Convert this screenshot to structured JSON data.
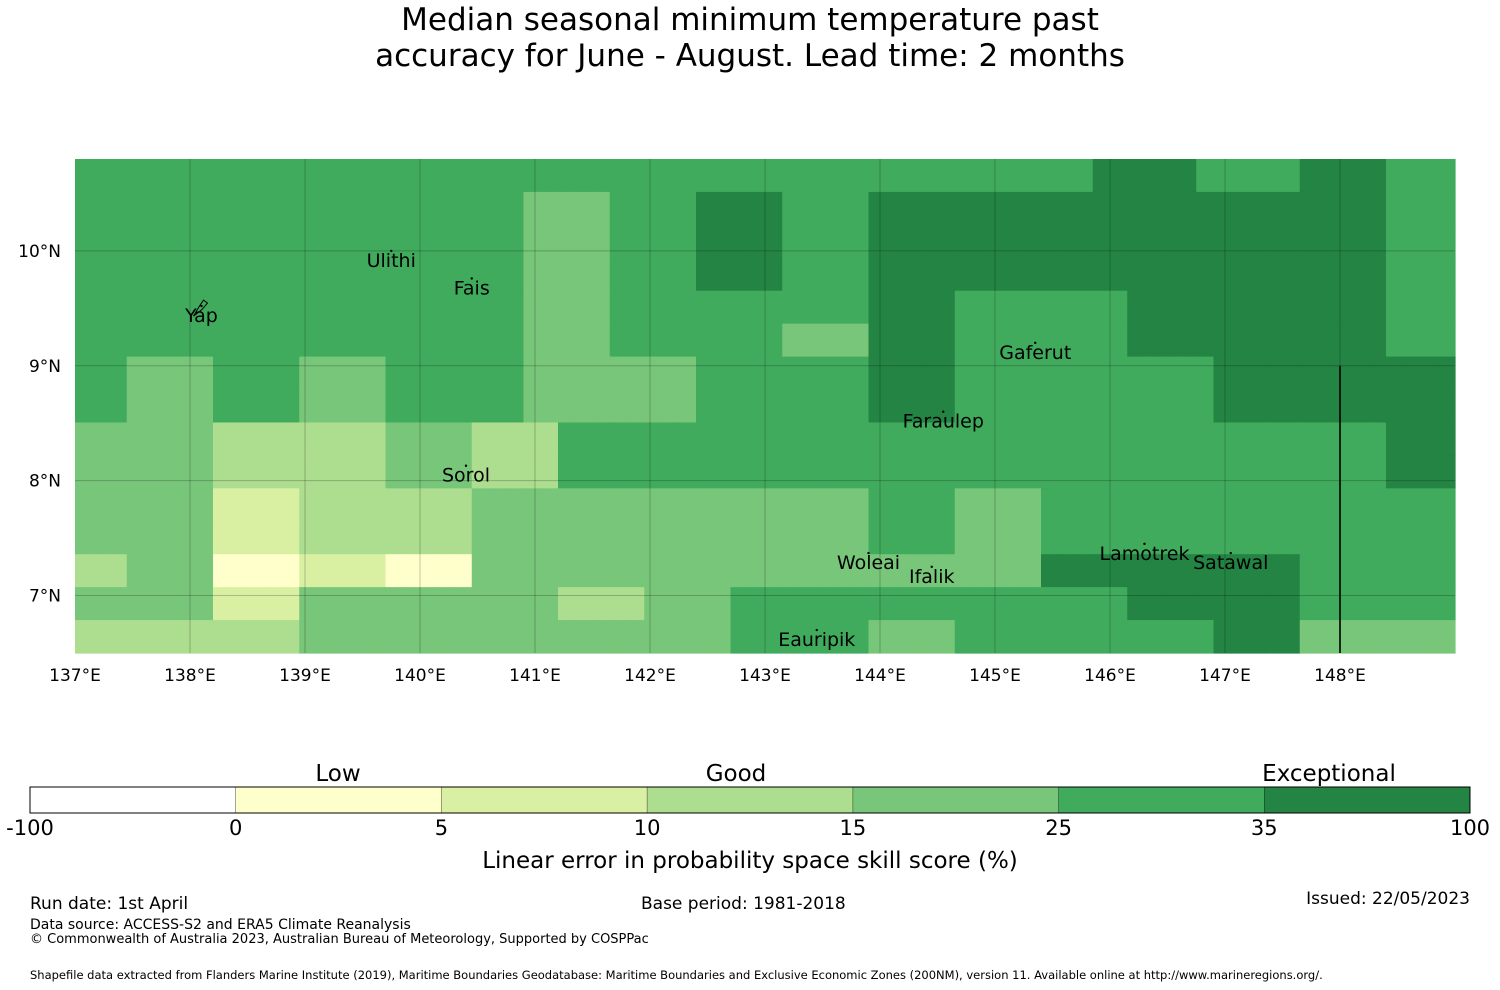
{
  "title": {
    "line1": "Median seasonal minimum temperature past",
    "line2": "accuracy for June - August. Lead time: 2 months"
  },
  "map": {
    "lon_range": [
      137,
      149
    ],
    "lat_range": [
      6.5,
      10.8
    ],
    "x_ticks": [
      "137°E",
      "138°E",
      "139°E",
      "140°E",
      "141°E",
      "142°E",
      "143°E",
      "144°E",
      "145°E",
      "146°E",
      "147°E",
      "148°E"
    ],
    "y_ticks": [
      "10°N",
      "9°N",
      "8°N",
      "7°N"
    ],
    "islands": [
      {
        "name": "Yap",
        "lon": 138.1,
        "lat": 9.52
      },
      {
        "name": "Ulithi",
        "lon": 139.75,
        "lat": 10.0
      },
      {
        "name": "Fais",
        "lon": 140.45,
        "lat": 9.76
      },
      {
        "name": "Gaferut",
        "lon": 145.35,
        "lat": 9.2
      },
      {
        "name": "Faraulep",
        "lon": 144.55,
        "lat": 8.6
      },
      {
        "name": "Sorol",
        "lon": 140.4,
        "lat": 8.13
      },
      {
        "name": "Woleai",
        "lon": 143.9,
        "lat": 7.37
      },
      {
        "name": "Ifalik",
        "lon": 144.45,
        "lat": 7.25
      },
      {
        "name": "Lamotrek",
        "lon": 146.3,
        "lat": 7.45
      },
      {
        "name": "Satawal",
        "lon": 147.05,
        "lat": 7.37
      },
      {
        "name": "Eauripik",
        "lon": 143.45,
        "lat": 6.7
      }
    ],
    "boundary_line": {
      "lon": 148.0,
      "lat_from": 6.5,
      "lat_to": 9.0
    },
    "class_colors": [
      "#ffffff",
      "#ffffcc",
      "#d9f0a3",
      "#addd8e",
      "#78c679",
      "#41ab5d",
      "#238443"
    ],
    "rows_north_to_south": [
      [
        5,
        5,
        5,
        5,
        5,
        5,
        5,
        5,
        5,
        5,
        5,
        5,
        5,
        5,
        5,
        5,
        5,
        5,
        5,
        5,
        5,
        5,
        5,
        5,
        5,
        5,
        5,
        5,
        5,
        5,
        5,
        5,
        5,
        5,
        5,
        5,
        5,
        5,
        5,
        5,
        5,
        5,
        5,
        5,
        5,
        5,
        5,
        5,
        5,
        5,
        5,
        5,
        5,
        5,
        5,
        5,
        5,
        5,
        5,
        6,
        6,
        6,
        6,
        6,
        6,
        5,
        5,
        5,
        5,
        5,
        5,
        6,
        6,
        6,
        6,
        6,
        5,
        5,
        5,
        5
      ],
      [
        5,
        5,
        5,
        5,
        5,
        5,
        5,
        5,
        5,
        5,
        5,
        5,
        5,
        5,
        5,
        5,
        5,
        5,
        5,
        5,
        5,
        5,
        5,
        5,
        5,
        5,
        4,
        4,
        4,
        4,
        4,
        5,
        5,
        5,
        5,
        5,
        6,
        6,
        6,
        6,
        6,
        5,
        5,
        5,
        5,
        5,
        6,
        6,
        6,
        6,
        6,
        6,
        6,
        6,
        6,
        6,
        6,
        6,
        6,
        6,
        6,
        6,
        6,
        6,
        6,
        6,
        6,
        6,
        6,
        6,
        6,
        6,
        6,
        6,
        6,
        6,
        5,
        5,
        5,
        5
      ],
      [
        5,
        5,
        5,
        5,
        5,
        5,
        5,
        5,
        5,
        5,
        5,
        5,
        5,
        5,
        5,
        5,
        5,
        5,
        5,
        5,
        5,
        5,
        5,
        5,
        5,
        5,
        4,
        4,
        4,
        4,
        4,
        5,
        5,
        5,
        5,
        5,
        6,
        6,
        6,
        6,
        6,
        5,
        5,
        5,
        5,
        5,
        6,
        6,
        6,
        6,
        6,
        6,
        6,
        6,
        6,
        6,
        6,
        6,
        6,
        6,
        6,
        6,
        6,
        6,
        6,
        6,
        6,
        6,
        6,
        6,
        6,
        6,
        6,
        6,
        6,
        6,
        5,
        5,
        5,
        5
      ],
      [
        5,
        5,
        5,
        5,
        5,
        5,
        5,
        5,
        5,
        5,
        5,
        5,
        5,
        5,
        5,
        5,
        5,
        5,
        5,
        5,
        5,
        5,
        5,
        5,
        5,
        5,
        4,
        4,
        4,
        4,
        4,
        5,
        5,
        5,
        5,
        5,
        6,
        6,
        6,
        6,
        6,
        5,
        5,
        5,
        5,
        5,
        6,
        6,
        6,
        6,
        6,
        6,
        6,
        6,
        6,
        6,
        6,
        6,
        6,
        6,
        6,
        6,
        6,
        6,
        6,
        6,
        6,
        6,
        6,
        6,
        6,
        6,
        6,
        6,
        6,
        6,
        5,
        5,
        5,
        5
      ],
      [
        5,
        5,
        5,
        5,
        5,
        5,
        5,
        5,
        5,
        5,
        5,
        5,
        5,
        5,
        5,
        5,
        5,
        5,
        5,
        5,
        5,
        5,
        5,
        5,
        5,
        5,
        4,
        4,
        4,
        4,
        4,
        5,
        5,
        5,
        5,
        5,
        5,
        5,
        5,
        5,
        5,
        5,
        5,
        5,
        5,
        5,
        6,
        6,
        6,
        6,
        6,
        5,
        5,
        5,
        5,
        5,
        5,
        5,
        5,
        5,
        5,
        6,
        6,
        6,
        6,
        6,
        6,
        6,
        6,
        6,
        6,
        6,
        6,
        6,
        6,
        6,
        5,
        5,
        5,
        5
      ],
      [
        5,
        5,
        5,
        5,
        5,
        5,
        5,
        5,
        5,
        5,
        5,
        5,
        5,
        5,
        5,
        5,
        5,
        5,
        5,
        5,
        5,
        5,
        5,
        5,
        5,
        5,
        4,
        4,
        4,
        4,
        4,
        5,
        5,
        5,
        5,
        5,
        5,
        5,
        5,
        5,
        5,
        4,
        4,
        4,
        4,
        4,
        6,
        6,
        6,
        6,
        6,
        5,
        5,
        5,
        5,
        5,
        5,
        5,
        5,
        5,
        5,
        6,
        6,
        6,
        6,
        6,
        6,
        6,
        6,
        6,
        6,
        6,
        6,
        6,
        6,
        6,
        5,
        5,
        5,
        5
      ],
      [
        5,
        5,
        5,
        4,
        4,
        4,
        4,
        4,
        5,
        5,
        5,
        5,
        5,
        4,
        4,
        4,
        4,
        4,
        5,
        5,
        5,
        5,
        5,
        5,
        5,
        5,
        4,
        4,
        4,
        4,
        4,
        4,
        4,
        4,
        4,
        4,
        5,
        5,
        5,
        5,
        5,
        5,
        5,
        5,
        5,
        5,
        6,
        6,
        6,
        6,
        6,
        5,
        5,
        5,
        5,
        5,
        5,
        5,
        5,
        5,
        5,
        5,
        5,
        5,
        5,
        5,
        6,
        6,
        6,
        6,
        6,
        6,
        6,
        6,
        6,
        6,
        6,
        6,
        6,
        6
      ],
      [
        5,
        5,
        5,
        4,
        4,
        4,
        4,
        4,
        5,
        5,
        5,
        5,
        5,
        4,
        4,
        4,
        4,
        4,
        5,
        5,
        5,
        5,
        5,
        5,
        5,
        5,
        4,
        4,
        4,
        4,
        4,
        4,
        4,
        4,
        4,
        4,
        5,
        5,
        5,
        5,
        5,
        5,
        5,
        5,
        5,
        5,
        6,
        6,
        6,
        6,
        6,
        5,
        5,
        5,
        5,
        5,
        5,
        5,
        5,
        5,
        5,
        5,
        5,
        5,
        5,
        5,
        6,
        6,
        6,
        6,
        6,
        6,
        6,
        6,
        6,
        6,
        6,
        6,
        6,
        6
      ],
      [
        4,
        4,
        4,
        4,
        4,
        4,
        4,
        4,
        3,
        3,
        3,
        3,
        3,
        3,
        3,
        3,
        3,
        3,
        4,
        4,
        4,
        4,
        4,
        3,
        3,
        3,
        3,
        3,
        5,
        5,
        5,
        5,
        5,
        5,
        5,
        5,
        5,
        5,
        5,
        5,
        5,
        5,
        5,
        5,
        5,
        5,
        5,
        5,
        5,
        5,
        5,
        5,
        5,
        5,
        5,
        5,
        5,
        5,
        5,
        5,
        5,
        5,
        5,
        5,
        5,
        5,
        5,
        5,
        5,
        5,
        5,
        5,
        5,
        5,
        5,
        5,
        6,
        6,
        6,
        6
      ],
      [
        4,
        4,
        4,
        4,
        4,
        4,
        4,
        4,
        3,
        3,
        3,
        3,
        3,
        3,
        3,
        3,
        3,
        3,
        4,
        4,
        4,
        4,
        4,
        3,
        3,
        3,
        3,
        3,
        5,
        5,
        5,
        5,
        5,
        5,
        5,
        5,
        5,
        5,
        5,
        5,
        5,
        5,
        5,
        5,
        5,
        5,
        5,
        5,
        5,
        5,
        5,
        5,
        5,
        5,
        5,
        5,
        5,
        5,
        5,
        5,
        5,
        5,
        5,
        5,
        5,
        5,
        5,
        5,
        5,
        5,
        5,
        5,
        5,
        5,
        5,
        5,
        6,
        6,
        6,
        6
      ],
      [
        4,
        4,
        4,
        4,
        4,
        4,
        4,
        4,
        2,
        2,
        2,
        2,
        2,
        3,
        3,
        3,
        3,
        3,
        3,
        3,
        3,
        3,
        3,
        4,
        4,
        4,
        4,
        4,
        4,
        4,
        4,
        4,
        4,
        4,
        4,
        4,
        4,
        4,
        4,
        4,
        4,
        4,
        4,
        4,
        4,
        4,
        5,
        5,
        5,
        5,
        5,
        4,
        4,
        4,
        4,
        4,
        5,
        5,
        5,
        5,
        5,
        5,
        5,
        5,
        5,
        5,
        5,
        5,
        5,
        5,
        5,
        5,
        5,
        5,
        5,
        5,
        5,
        5,
        5,
        5
      ],
      [
        4,
        4,
        4,
        4,
        4,
        4,
        4,
        4,
        2,
        2,
        2,
        2,
        2,
        3,
        3,
        3,
        3,
        3,
        3,
        3,
        3,
        3,
        3,
        4,
        4,
        4,
        4,
        4,
        4,
        4,
        4,
        4,
        4,
        4,
        4,
        4,
        4,
        4,
        4,
        4,
        4,
        4,
        4,
        4,
        4,
        4,
        5,
        5,
        5,
        5,
        5,
        4,
        4,
        4,
        4,
        4,
        5,
        5,
        5,
        5,
        5,
        5,
        5,
        5,
        5,
        5,
        5,
        5,
        5,
        5,
        5,
        5,
        5,
        5,
        5,
        5,
        5,
        5,
        5,
        5
      ],
      [
        3,
        3,
        3,
        4,
        4,
        4,
        4,
        4,
        1,
        1,
        1,
        1,
        1,
        2,
        2,
        2,
        2,
        2,
        1,
        1,
        1,
        1,
        1,
        4,
        4,
        4,
        4,
        4,
        4,
        4,
        4,
        4,
        4,
        4,
        4,
        4,
        4,
        4,
        4,
        4,
        4,
        4,
        4,
        4,
        4,
        4,
        4,
        4,
        4,
        4,
        4,
        4,
        4,
        4,
        4,
        4,
        6,
        6,
        6,
        6,
        6,
        6,
        6,
        6,
        6,
        6,
        6,
        6,
        6,
        6,
        6,
        5,
        5,
        5,
        5,
        5,
        5,
        5,
        5,
        5
      ],
      [
        4,
        4,
        4,
        4,
        4,
        4,
        4,
        4,
        2,
        2,
        2,
        2,
        2,
        4,
        4,
        4,
        4,
        4,
        4,
        4,
        4,
        4,
        4,
        4,
        4,
        4,
        4,
        4,
        3,
        3,
        3,
        3,
        3,
        4,
        4,
        4,
        4,
        4,
        5,
        5,
        5,
        5,
        5,
        5,
        5,
        5,
        5,
        5,
        5,
        5,
        5,
        5,
        5,
        5,
        5,
        5,
        5,
        5,
        5,
        5,
        5,
        6,
        6,
        6,
        6,
        6,
        6,
        6,
        6,
        6,
        6,
        5,
        5,
        5,
        5,
        5,
        5,
        5,
        5,
        5
      ],
      [
        3,
        3,
        3,
        3,
        3,
        3,
        3,
        3,
        3,
        3,
        3,
        3,
        3,
        4,
        4,
        4,
        4,
        4,
        4,
        4,
        4,
        4,
        4,
        4,
        4,
        4,
        4,
        4,
        4,
        4,
        4,
        4,
        4,
        4,
        4,
        4,
        4,
        4,
        5,
        5,
        5,
        5,
        5,
        5,
        5,
        5,
        4,
        4,
        4,
        4,
        4,
        5,
        5,
        5,
        5,
        5,
        5,
        5,
        5,
        5,
        5,
        5,
        5,
        5,
        5,
        5,
        6,
        6,
        6,
        6,
        6,
        4,
        4,
        4,
        4,
        4,
        4,
        4,
        4,
        4
      ]
    ]
  },
  "colorbar": {
    "category_labels": [
      "Low",
      "Good",
      "Exceptional"
    ],
    "boundaries": [
      "-100",
      "0",
      "5",
      "10",
      "15",
      "25",
      "35",
      "100"
    ],
    "colors": [
      "#ffffff",
      "#ffffcc",
      "#d9f0a3",
      "#addd8e",
      "#78c679",
      "#41ab5d",
      "#238443"
    ],
    "label": "Linear error in probability space skill score (%)"
  },
  "footer": {
    "run_date": "Run date: 1st April",
    "base_period": "Base period: 1981-2018",
    "issued": "Issued: 22/05/2023",
    "data_source": "Data source: ACCESS-S2 and ERA5 Climate Reanalysis",
    "copyright": "© Commonwealth of Australia 2023, Australian Bureau of Meteorology, Supported by COSPPac",
    "shapefile": "Shapefile data extracted from Flanders Marine Institute (2019), Maritime Boundaries Geodatabase: Maritime Boundaries and Exclusive Economic Zones (200NM), version 11. Available online at http://www.marineregions.org/."
  }
}
